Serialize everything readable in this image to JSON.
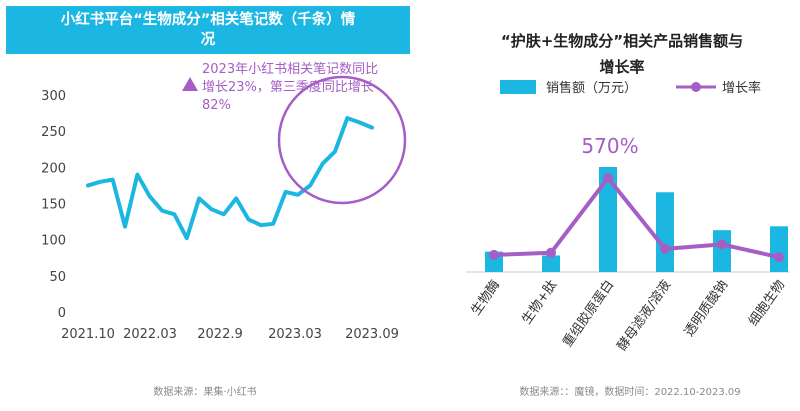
{
  "left_panel": {
    "title_line1": "小红书平台“生物成分”相关笔记数（千条）情",
    "title_line2": "况",
    "annotation_lines": [
      "2023年小红书相关笔记数同比",
      "增长23%，第三季度同比增长",
      "82%"
    ],
    "source": "数据来源：果集·小红书"
  },
  "right_panel": {
    "title_line1": "“护肤+生物成分”相关产品销售额与",
    "title_line2": "增长率",
    "highlight_label": "570%",
    "source": "数据来源：：魔镜，数据时间：2022.10-2023.09"
  },
  "colors": {
    "bar": "#1cb6e3",
    "line": "#1cb6e3",
    "rate": "#a45ec4",
    "circle": "#a45ec4"
  },
  "chart_data": [
    {
      "type": "line",
      "title": "小红书平台“生物成分”相关笔记数（千条）情况",
      "x_tick_labels": [
        "2021.10",
        "2022.03",
        "2022.9",
        "2023.03",
        "2023.09"
      ],
      "y_ticks": [
        0,
        50,
        100,
        150,
        200,
        250,
        300
      ],
      "ylim": [
        0,
        300
      ],
      "grid": false,
      "series": [
        {
          "values": [
            175,
            180,
            183,
            118,
            190,
            160,
            140,
            135,
            102,
            157,
            142,
            135,
            157,
            128,
            120,
            122,
            166,
            162,
            175,
            205,
            222,
            268,
            262,
            255
          ]
        }
      ]
    },
    {
      "type": "bar",
      "title": "“护肤+生物成分”相关产品销售额与增长率",
      "categories": [
        "生物酶",
        "生物+肽",
        "重组胶原蛋白",
        "酵母滤液/溶液",
        "透明质酸钠",
        "细胞生物"
      ],
      "legend": [
        "销售额（万元）",
        "增长率"
      ],
      "legend_position": "top",
      "series": [
        {
          "name": "销售额（万元）",
          "type": "bar",
          "values": [
            21,
            17,
            108,
            82,
            43,
            47
          ]
        },
        {
          "name": "增长率",
          "type": "line",
          "values": [
            60,
            75,
            570,
            100,
            130,
            45
          ]
        }
      ],
      "annotations": [
        "570%"
      ]
    }
  ]
}
